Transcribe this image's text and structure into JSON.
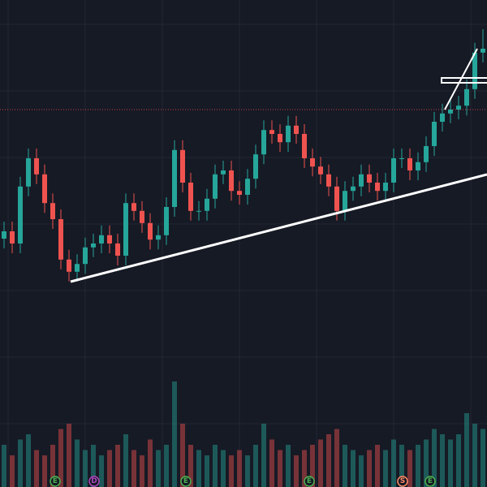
{
  "chart_data": {
    "type": "candlestick",
    "ylim": [
      0,
      100
    ],
    "volume_ylim": [
      0,
      100
    ],
    "up_color": "#26a69a",
    "down_color": "#ef5350",
    "open": [
      51,
      52.5,
      50,
      61.7,
      67.5,
      64.2,
      58.3,
      55,
      46.7,
      44.2,
      45.8,
      49.2,
      50,
      51.7,
      50,
      47.5,
      58.3,
      56.7,
      54.2,
      50.8,
      51.7,
      57.5,
      69.2,
      62.5,
      56.7,
      56.7,
      59.2,
      64.2,
      65,
      60.8,
      60,
      63.3,
      68.3,
      73.3,
      72.5,
      70.8,
      74.2,
      72.5,
      67.5,
      65.8,
      64.2,
      61.7,
      56.7,
      60.8,
      61.7,
      64.2,
      62.5,
      60.8,
      62.5,
      67.5,
      67.5,
      65,
      66.7,
      70,
      75,
      76.7,
      77.5,
      78.3,
      81.7,
      89.2
    ],
    "high": [
      54.5,
      54.5,
      63.7,
      69.5,
      69.5,
      66.2,
      60.3,
      57,
      48.7,
      47.8,
      51.2,
      52,
      53.7,
      53.7,
      52,
      60.3,
      60.3,
      58.7,
      56.2,
      53.7,
      59.5,
      71.2,
      71.2,
      64.5,
      58.7,
      61.2,
      66.2,
      67,
      67,
      62.8,
      65.3,
      70.3,
      75.3,
      75.3,
      74.5,
      76.2,
      76.2,
      74.5,
      69.5,
      67.8,
      66.2,
      63.7,
      62.8,
      63.7,
      66.2,
      66.2,
      64.5,
      64.5,
      69.5,
      69.5,
      69.5,
      68.7,
      72,
      77,
      78.7,
      79.5,
      80.3,
      83.7,
      91.2,
      94
    ],
    "low": [
      49,
      48,
      48,
      59.7,
      62.2,
      56.3,
      53,
      44.7,
      42.2,
      42.2,
      43.8,
      47.2,
      48,
      48,
      45.5,
      45.5,
      54.7,
      52.2,
      48.8,
      48.8,
      49.7,
      55.5,
      60.5,
      54.7,
      54.7,
      54.7,
      57.2,
      62.2,
      58.8,
      58,
      58,
      61.3,
      66.3,
      70.5,
      68.8,
      68.8,
      70.5,
      65.5,
      63.8,
      62.2,
      59.7,
      54.7,
      54.7,
      58.8,
      59.7,
      60.5,
      58.8,
      58.8,
      60.5,
      65.5,
      63,
      63,
      64.7,
      68,
      73,
      74.7,
      75.5,
      76.3,
      79.7,
      87.2
    ],
    "close": [
      52.5,
      50,
      61.7,
      67.5,
      64.2,
      58.3,
      55,
      46.7,
      44.2,
      45.8,
      49.2,
      50,
      51.7,
      50,
      47.5,
      58.3,
      56.7,
      54.2,
      50.8,
      51.7,
      57.5,
      69.2,
      62.5,
      56.7,
      56.7,
      59.2,
      64.2,
      65,
      60.8,
      60,
      63.3,
      68.3,
      73.3,
      72.5,
      70.8,
      74.2,
      72.5,
      67.5,
      65.8,
      64.2,
      61.7,
      56.7,
      60.8,
      61.7,
      64.2,
      62.5,
      60.8,
      62.5,
      67.5,
      67.5,
      65,
      66.7,
      70,
      75,
      76.7,
      77.5,
      78.3,
      81.7,
      89.2,
      90
    ],
    "volume": [
      40,
      30,
      45,
      50,
      35,
      30,
      40,
      55,
      60,
      45,
      35,
      40,
      30,
      35,
      40,
      50,
      35,
      30,
      45,
      35,
      40,
      100,
      60,
      40,
      35,
      30,
      40,
      35,
      30,
      35,
      30,
      40,
      60,
      45,
      35,
      40,
      30,
      35,
      40,
      45,
      50,
      55,
      40,
      35,
      30,
      35,
      40,
      35,
      45,
      40,
      35,
      40,
      45,
      55,
      50,
      45,
      50,
      70,
      60,
      55
    ],
    "events": [
      "E",
      "D",
      "E",
      "E",
      "S",
      "E"
    ]
  }
}
